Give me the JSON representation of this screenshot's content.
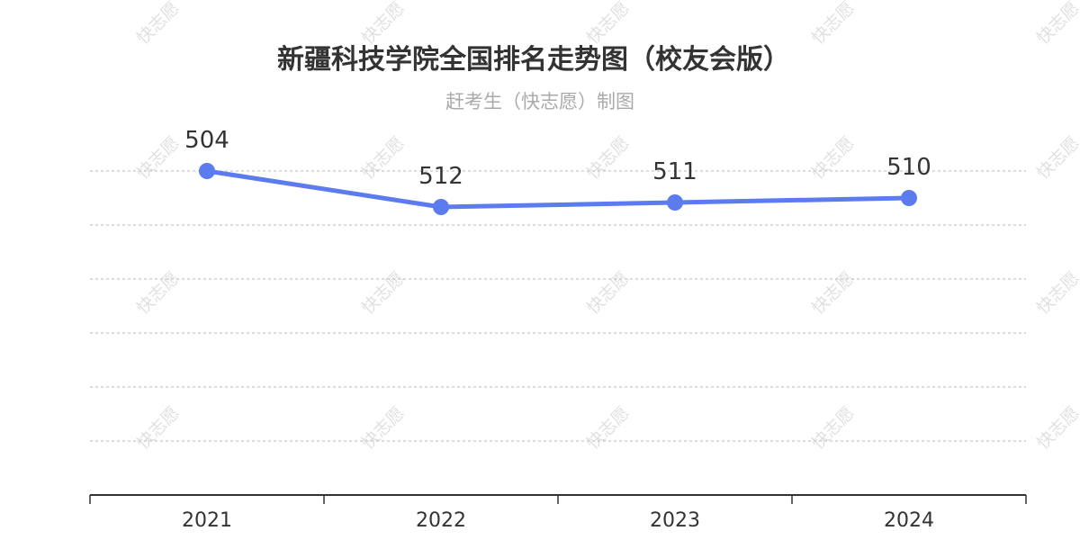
{
  "watermark_text": "快志愿",
  "chart_data": {
    "type": "line",
    "title": "新疆科技学院全国排名走势图（校友会版）",
    "subtitle": "赶考生（快志愿）制图",
    "categories": [
      "2021",
      "2022",
      "2023",
      "2024"
    ],
    "values": [
      504,
      512,
      511,
      510
    ],
    "y_inverted": true,
    "ylim": [
      504,
      564
    ],
    "grid": true,
    "line_color": "#5b7bef"
  }
}
